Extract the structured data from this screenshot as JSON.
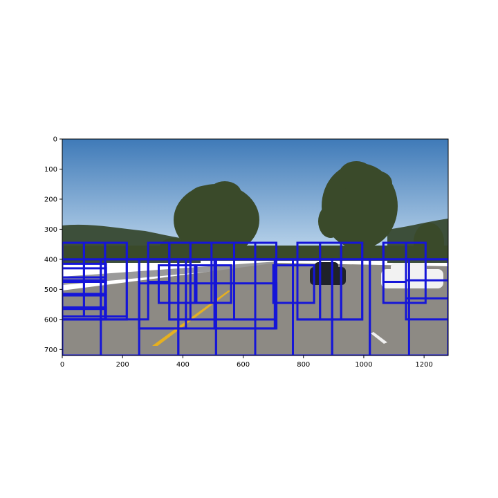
{
  "chart_data": {
    "type": "image_with_detection_windows",
    "title": "",
    "xlabel": "",
    "ylabel": "",
    "xlim": [
      0,
      1280
    ],
    "ylim": [
      720,
      0
    ],
    "x_ticks": [
      0,
      200,
      400,
      600,
      800,
      1000,
      1200
    ],
    "x_tick_labels": [
      "0",
      "200",
      "400",
      "600",
      "800",
      "1000",
      "1200"
    ],
    "y_ticks": [
      0,
      100,
      200,
      300,
      400,
      500,
      600,
      700
    ],
    "y_tick_labels": [
      "0",
      "100",
      "200",
      "300",
      "400",
      "500",
      "600",
      "700"
    ],
    "box_color": "#1515d8",
    "boxes": [
      {
        "x0": 0,
        "y0": 345,
        "x1": 72,
        "y1": 590
      },
      {
        "x0": 72,
        "y0": 345,
        "x1": 142,
        "y1": 590
      },
      {
        "x0": 142,
        "y0": 345,
        "x1": 214,
        "y1": 590
      },
      {
        "x0": 0,
        "y0": 345,
        "x1": 214,
        "y1": 600
      },
      {
        "x0": 0,
        "y0": 400,
        "x1": 142,
        "y1": 600
      },
      {
        "x0": 0,
        "y0": 400,
        "x1": 1280,
        "y1": 720
      },
      {
        "x0": 0,
        "y0": 415,
        "x1": 145,
        "y1": 460
      },
      {
        "x0": 0,
        "y0": 430,
        "x1": 145,
        "y1": 475
      },
      {
        "x0": 0,
        "y0": 470,
        "x1": 145,
        "y1": 515
      },
      {
        "x0": 0,
        "y0": 520,
        "x1": 145,
        "y1": 565
      },
      {
        "x0": 0,
        "y0": 560,
        "x1": 145,
        "y1": 600
      },
      {
        "x0": 128,
        "y0": 400,
        "x1": 385,
        "y1": 720
      },
      {
        "x0": 128,
        "y0": 400,
        "x1": 285,
        "y1": 600
      },
      {
        "x0": 255,
        "y0": 400,
        "x1": 510,
        "y1": 720
      },
      {
        "x0": 255,
        "y0": 400,
        "x1": 410,
        "y1": 630
      },
      {
        "x0": 285,
        "y0": 345,
        "x1": 355,
        "y1": 475
      },
      {
        "x0": 320,
        "y0": 420,
        "x1": 440,
        "y1": 545
      },
      {
        "x0": 355,
        "y0": 345,
        "x1": 425,
        "y1": 600
      },
      {
        "x0": 355,
        "y0": 345,
        "x1": 570,
        "y1": 600
      },
      {
        "x0": 385,
        "y0": 400,
        "x1": 640,
        "y1": 720
      },
      {
        "x0": 425,
        "y0": 345,
        "x1": 495,
        "y1": 545
      },
      {
        "x0": 445,
        "y0": 420,
        "x1": 560,
        "y1": 545
      },
      {
        "x0": 510,
        "y0": 400,
        "x1": 765,
        "y1": 720
      },
      {
        "x0": 505,
        "y0": 400,
        "x1": 705,
        "y1": 630
      },
      {
        "x0": 570,
        "y0": 345,
        "x1": 640,
        "y1": 600
      },
      {
        "x0": 570,
        "y0": 345,
        "x1": 710,
        "y1": 600
      },
      {
        "x0": 255,
        "y0": 480,
        "x1": 710,
        "y1": 630
      },
      {
        "x0": 640,
        "y0": 400,
        "x1": 895,
        "y1": 720
      },
      {
        "x0": 700,
        "y0": 420,
        "x1": 835,
        "y1": 545
      },
      {
        "x0": 765,
        "y0": 400,
        "x1": 1020,
        "y1": 720
      },
      {
        "x0": 780,
        "y0": 345,
        "x1": 855,
        "y1": 600
      },
      {
        "x0": 780,
        "y0": 345,
        "x1": 995,
        "y1": 600
      },
      {
        "x0": 855,
        "y0": 345,
        "x1": 925,
        "y1": 600
      },
      {
        "x0": 925,
        "y0": 345,
        "x1": 995,
        "y1": 600
      },
      {
        "x0": 895,
        "y0": 400,
        "x1": 1150,
        "y1": 720
      },
      {
        "x0": 1020,
        "y0": 400,
        "x1": 1280,
        "y1": 720
      },
      {
        "x0": 1065,
        "y0": 345,
        "x1": 1205,
        "y1": 545
      },
      {
        "x0": 1065,
        "y0": 345,
        "x1": 1140,
        "y1": 475
      },
      {
        "x0": 1140,
        "y0": 400,
        "x1": 1280,
        "y1": 600
      },
      {
        "x0": 1140,
        "y0": 470,
        "x1": 1280,
        "y1": 530
      }
    ]
  },
  "scene": {
    "sky_top": "#3f7ab8",
    "sky_bottom": "#b9d3ea",
    "hill_color": "#3d4f3a",
    "tree_color": "#3a4a2a",
    "road_color": "#8d8a84",
    "lane_yellow": "#e6b020",
    "lane_white": "#f0f0f0",
    "car_white": "#f2f2f2",
    "car_dark": "#1f2229"
  }
}
